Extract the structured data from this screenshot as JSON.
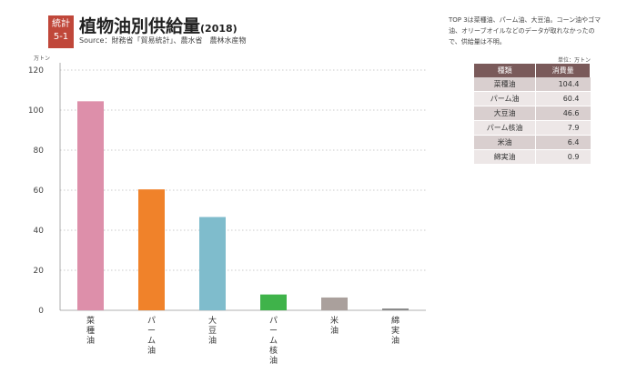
{
  "header": {
    "badge_line1": "統計",
    "badge_line2": "5-1",
    "title": "植物油別供給量",
    "title_year": "(2018)",
    "source": "Source：財務省「貿易統計」、農水省　農林水産物"
  },
  "note": "TOP 3は菜種油、パーム油、大豆油。コーン油やゴマ油、オリーブオイルなどのデータが取れなかったので、供給量は不明。",
  "table": {
    "unit": "単位：万トン",
    "headers": [
      "種類",
      "消費量"
    ],
    "rows": [
      {
        "name": "菜種油",
        "value": "104.4"
      },
      {
        "name": "パーム油",
        "value": "60.4"
      },
      {
        "name": "大豆油",
        "value": "46.6"
      },
      {
        "name": "パーム核油",
        "value": "7.9"
      },
      {
        "name": "米油",
        "value": "6.4"
      },
      {
        "name": "綿実油",
        "value": "0.9"
      }
    ]
  },
  "chart_data": {
    "type": "bar",
    "title": "植物油別供給量",
    "ylabel": "万トン",
    "ylim": [
      0,
      120
    ],
    "yticks": [
      0,
      20,
      40,
      60,
      80,
      100,
      120
    ],
    "grid": true,
    "categories": [
      "菜種油",
      "パーム油",
      "大豆油",
      "パーム核油",
      "米油",
      "綿実油"
    ],
    "values": [
      104.4,
      60.4,
      46.6,
      7.9,
      6.4,
      0.9
    ],
    "colors": [
      "#dd8faa",
      "#f0822a",
      "#7fbccc",
      "#3fb34a",
      "#aaa09c",
      "#8a8a8a"
    ]
  }
}
